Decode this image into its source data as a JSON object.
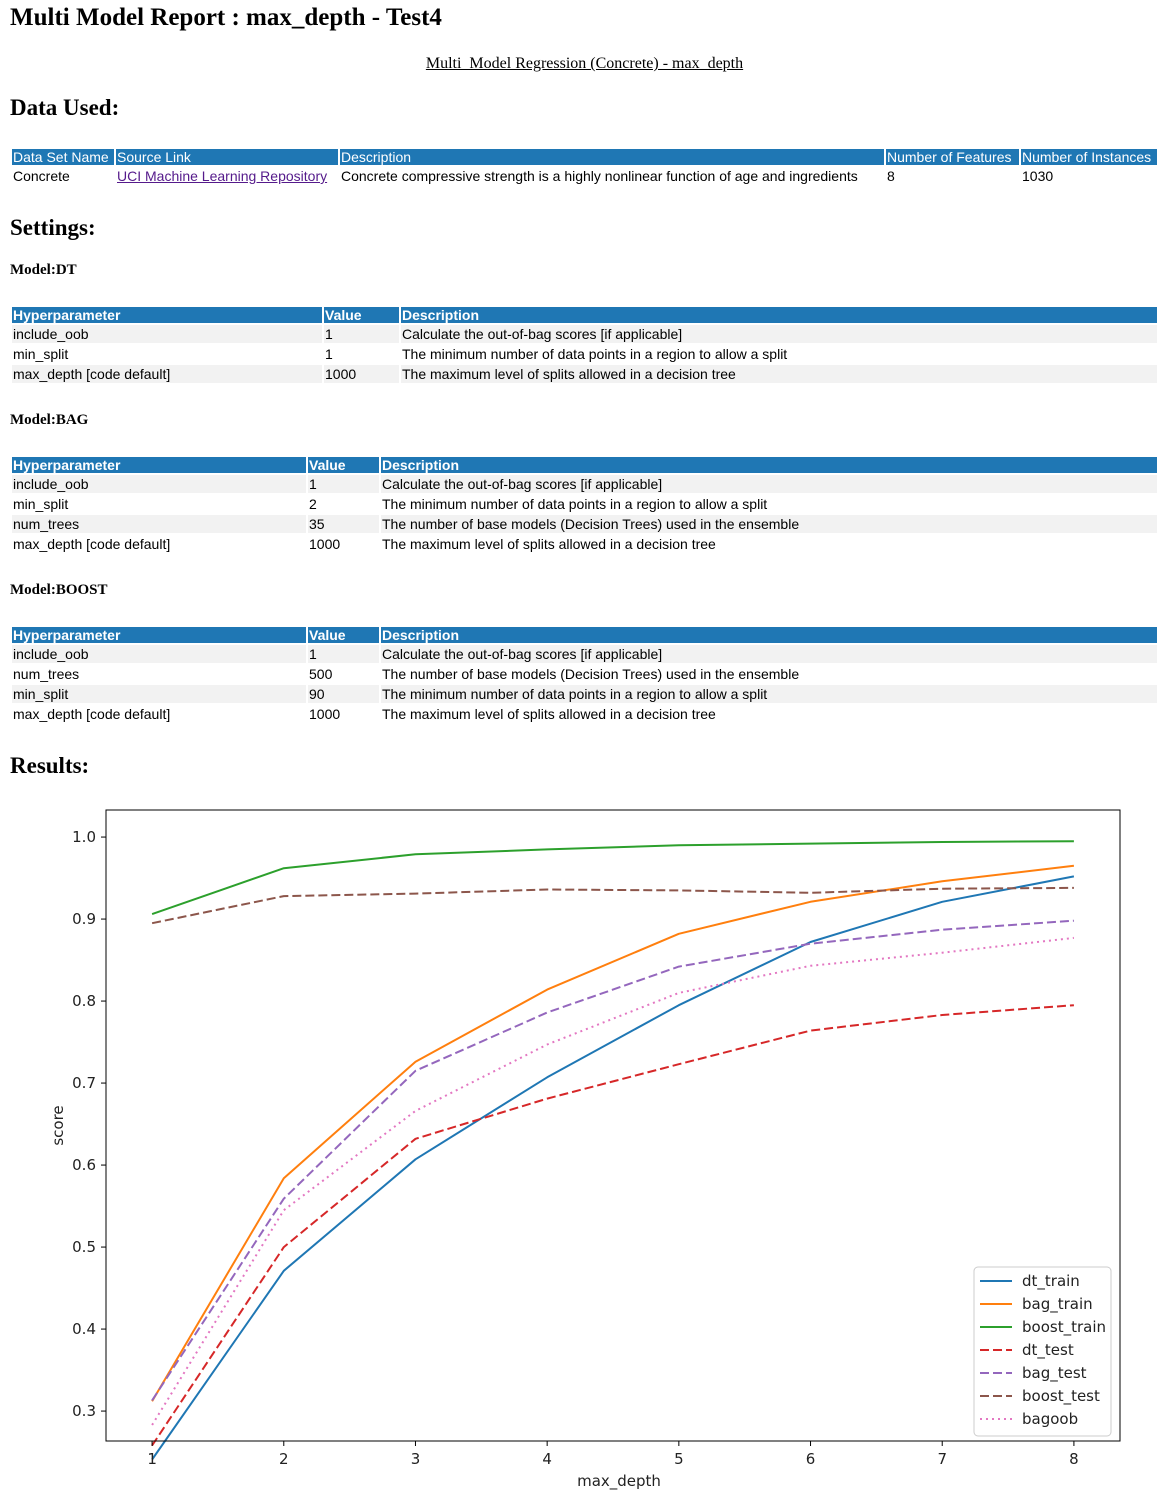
{
  "title": "Multi Model Report : max_depth - Test4",
  "subtitle": "Multi_Model Regression (Concrete) - max_depth",
  "data_used": {
    "heading": "Data Used:",
    "headers": [
      "Data Set Name",
      "Source Link",
      "Description",
      "Number of Features",
      "Number of Instances"
    ],
    "row": [
      "Concrete",
      "UCI Machine Learning Repository",
      "Concrete compressive strength is a highly nonlinear function of age and ingredients",
      "8",
      "1030"
    ]
  },
  "settings": {
    "heading": "Settings:",
    "headers": [
      "Hyperparameter",
      "Value",
      "Description"
    ],
    "models": [
      {
        "label": "Model:DT",
        "rows": [
          [
            "include_oob",
            "1",
            "Calculate the out-of-bag scores [if applicable]"
          ],
          [
            "min_split",
            "1",
            "The minimum number of data points in a region to allow a split"
          ],
          [
            "max_depth [code default]",
            "1000",
            "The maximum level of splits allowed in a decision tree"
          ]
        ]
      },
      {
        "label": "Model:BAG",
        "rows": [
          [
            "include_oob",
            "1",
            "Calculate the out-of-bag scores [if applicable]"
          ],
          [
            "min_split",
            "2",
            "The minimum number of data points in a region to allow a split"
          ],
          [
            "num_trees",
            "35",
            "The number of base models (Decision Trees) used in the ensemble"
          ],
          [
            "max_depth [code default]",
            "1000",
            "The maximum level of splits allowed in a decision tree"
          ]
        ]
      },
      {
        "label": "Model:BOOST",
        "rows": [
          [
            "include_oob",
            "1",
            "Calculate the out-of-bag scores [if applicable]"
          ],
          [
            "num_trees",
            "500",
            "The number of base models (Decision Trees) used in the ensemble"
          ],
          [
            "min_split",
            "90",
            "The minimum number of data points in a region to allow a split"
          ],
          [
            "max_depth [code default]",
            "1000",
            "The maximum level of splits allowed in a decision tree"
          ]
        ]
      }
    ]
  },
  "results": {
    "heading": "Results:"
  },
  "chart_data": {
    "type": "line",
    "xlabel": "max_depth",
    "ylabel": "score",
    "x": [
      1,
      2,
      3,
      4,
      5,
      6,
      7,
      8
    ],
    "xticks": [
      "1",
      "2",
      "3",
      "4",
      "5",
      "6",
      "7",
      "8"
    ],
    "yticks": [
      "0.3",
      "0.4",
      "0.5",
      "0.6",
      "0.7",
      "0.8",
      "0.9",
      "1.0"
    ],
    "xlim": [
      0.65,
      8.35
    ],
    "ylim": [
      0.2635,
      1.033
    ],
    "legend_position": "lower right",
    "grid": false,
    "series": [
      {
        "name": "dt_train",
        "color": "#1f77b4",
        "style": "solid",
        "values": [
          0.241,
          0.471,
          0.607,
          0.707,
          0.795,
          0.872,
          0.921,
          0.952
        ]
      },
      {
        "name": "bag_train",
        "color": "#ff7f0e",
        "style": "solid",
        "values": [
          0.312,
          0.584,
          0.726,
          0.814,
          0.882,
          0.921,
          0.946,
          0.965
        ]
      },
      {
        "name": "boost_train",
        "color": "#2ca02c",
        "style": "solid",
        "values": [
          0.906,
          0.962,
          0.979,
          0.985,
          0.99,
          0.992,
          0.994,
          0.995
        ]
      },
      {
        "name": "dt_test",
        "color": "#d62728",
        "style": "dashed",
        "values": [
          0.258,
          0.5,
          0.632,
          0.681,
          0.723,
          0.764,
          0.783,
          0.795
        ]
      },
      {
        "name": "bag_test",
        "color": "#9467bd",
        "style": "dashed",
        "values": [
          0.313,
          0.559,
          0.715,
          0.786,
          0.842,
          0.87,
          0.887,
          0.898
        ]
      },
      {
        "name": "boost_test",
        "color": "#8c564b",
        "style": "dashed",
        "values": [
          0.895,
          0.928,
          0.931,
          0.936,
          0.935,
          0.932,
          0.937,
          0.938
        ]
      },
      {
        "name": "bagoob",
        "color": "#e377c2",
        "style": "dotted",
        "values": [
          0.283,
          0.545,
          0.666,
          0.747,
          0.81,
          0.843,
          0.859,
          0.877
        ]
      }
    ]
  }
}
